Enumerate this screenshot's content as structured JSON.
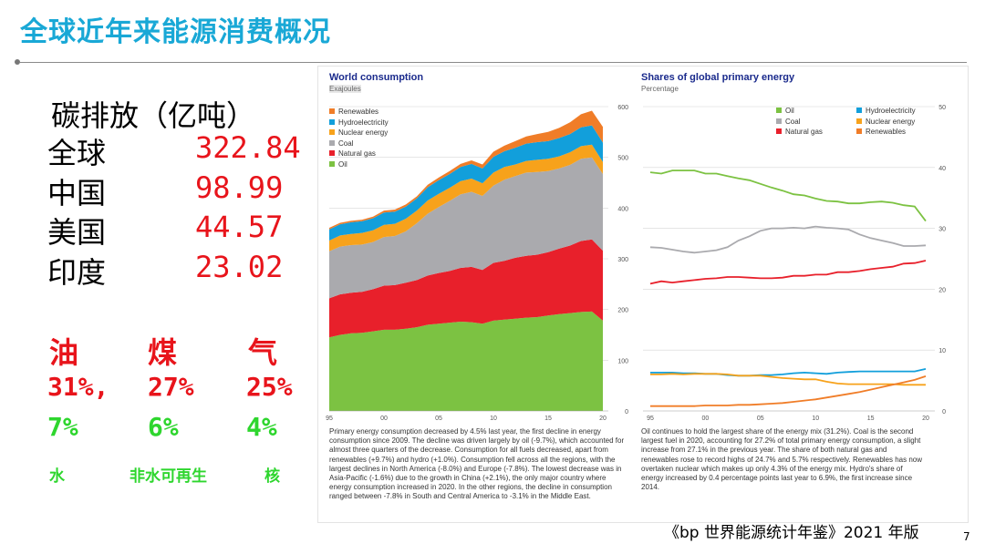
{
  "title": "全球近年来能源消费概况",
  "emissions": {
    "heading": "碳排放（亿吨）",
    "rows": [
      {
        "region": "全球",
        "value": "322.84"
      },
      {
        "region": "中国",
        "value": "98.99"
      },
      {
        "region": "美国",
        "value": "44.57"
      },
      {
        "region": "印度",
        "value": "23.02"
      }
    ]
  },
  "mix": {
    "labels": [
      "油",
      "煤",
      "气"
    ],
    "pcts": [
      "31%,",
      "27%",
      "25%"
    ],
    "pcts2": [
      "7%",
      "6%",
      "4%"
    ],
    "labels2": [
      "水",
      "非水可再生",
      "核"
    ]
  },
  "left_chart": {
    "title": "World consumption",
    "subtitle": "Exajoules",
    "note": "Primary energy consumption decreased by 4.5% last year, the first decline in energy consumption since 2009. The decline was driven largely by oil (-9.7%), which accounted for almost three quarters of the decrease. Consumption for all fuels decreased, apart from renewables (+9.7%) and hydro (+1.0%). Consumption fell across all the regions, with the largest declines in North America (-8.0%) and Europe (-7.8%). The lowest decrease was in Asia-Pacific (-1.6%) due to the growth in China (+2.1%), the only major country where energy consumption increased in 2020. In the other regions, the decline in consumption ranged between -7.8% in South and Central America to -3.1% in the Middle East."
  },
  "right_chart": {
    "title": "Shares of global primary energy",
    "subtitle": "Percentage",
    "note": "Oil continues to hold the largest share of the energy mix (31.2%). Coal is the second largest fuel in 2020, accounting for 27.2% of total primary energy consumption, a slight increase from 27.1% in the previous year. The share of both natural gas and renewables rose to record highs of 24.7% and 5.7% respectively. Renewables has now overtaken nuclear which makes up only 4.3% of the energy mix. Hydro's share of energy increased by 0.4 percentage points last year to 6.9%, the first increase since 2014."
  },
  "source": "《bp 世界能源统计年鉴》2021 年版",
  "page": "7",
  "colors": {
    "oil": "#7cc242",
    "natural_gas": "#e8202b",
    "coal": "#aaaaae",
    "nuclear": "#f7a21b",
    "hydro": "#129fdb",
    "renewables": "#f07d28"
  },
  "chart_data": [
    {
      "type": "area",
      "title": "World consumption",
      "ylabel": "Exajoules",
      "x": [
        1995,
        1996,
        1997,
        1998,
        1999,
        2000,
        2001,
        2002,
        2003,
        2004,
        2005,
        2006,
        2007,
        2008,
        2009,
        2010,
        2011,
        2012,
        2013,
        2014,
        2015,
        2016,
        2017,
        2018,
        2019,
        2020
      ],
      "xticks": [
        "95",
        "00",
        "05",
        "10",
        "15",
        "20"
      ],
      "yticks": [
        0,
        100,
        200,
        300,
        400,
        500,
        600
      ],
      "ylim": [
        0,
        600
      ],
      "stacked": true,
      "series": [
        {
          "name": "Oil",
          "color": "#7cc242",
          "values": [
            145,
            150,
            153,
            154,
            157,
            160,
            160,
            162,
            165,
            170,
            172,
            174,
            176,
            175,
            172,
            178,
            180,
            182,
            184,
            185,
            188,
            191,
            193,
            195,
            196,
            178
          ]
        },
        {
          "name": "Natural gas",
          "color": "#e8202b",
          "values": [
            77,
            80,
            80,
            81,
            83,
            87,
            88,
            91,
            93,
            97,
            100,
            102,
            106,
            109,
            106,
            114,
            116,
            120,
            122,
            123,
            125,
            129,
            133,
            140,
            142,
            138
          ]
        },
        {
          "name": "Coal",
          "color": "#aaaaae",
          "values": [
            93,
            94,
            94,
            93,
            93,
            96,
            97,
            101,
            112,
            122,
            130,
            138,
            145,
            148,
            146,
            152,
            160,
            161,
            164,
            163,
            160,
            158,
            159,
            162,
            162,
            151
          ]
        },
        {
          "name": "Nuclear energy",
          "color": "#f7a21b",
          "values": [
            21,
            22,
            22,
            23,
            23,
            24,
            24,
            25,
            25,
            26,
            26,
            26,
            26,
            26,
            25,
            26,
            25,
            23,
            23,
            24,
            24,
            24,
            25,
            25,
            25,
            24
          ]
        },
        {
          "name": "Hydroelectricity",
          "color": "#129fdb",
          "values": [
            22,
            22,
            23,
            23,
            24,
            24,
            24,
            24,
            24,
            26,
            27,
            27,
            28,
            29,
            29,
            31,
            31,
            33,
            34,
            35,
            35,
            36,
            36,
            37,
            38,
            38
          ]
        },
        {
          "name": "Renewables",
          "color": "#f07d28",
          "values": [
            3,
            3,
            3,
            3,
            3,
            4,
            4,
            4,
            4,
            5,
            5,
            6,
            6,
            7,
            8,
            10,
            11,
            13,
            14,
            16,
            18,
            20,
            23,
            26,
            29,
            31
          ]
        }
      ]
    },
    {
      "type": "line",
      "title": "Shares of global primary energy",
      "ylabel": "Percentage",
      "x": [
        1995,
        1996,
        1997,
        1998,
        1999,
        2000,
        2001,
        2002,
        2003,
        2004,
        2005,
        2006,
        2007,
        2008,
        2009,
        2010,
        2011,
        2012,
        2013,
        2014,
        2015,
        2016,
        2017,
        2018,
        2019,
        2020
      ],
      "xticks": [
        "95",
        "00",
        "05",
        "10",
        "15",
        "20"
      ],
      "yticks": [
        0,
        10,
        20,
        30,
        40,
        50
      ],
      "ylim": [
        0,
        50
      ],
      "series": [
        {
          "name": "Oil",
          "color": "#7cc242",
          "values": [
            39.2,
            39.0,
            39.5,
            39.5,
            39.5,
            39.0,
            39.0,
            38.6,
            38.2,
            37.9,
            37.3,
            36.7,
            36.2,
            35.6,
            35.4,
            34.9,
            34.5,
            34.4,
            34.1,
            34.1,
            34.3,
            34.4,
            34.2,
            33.8,
            33.6,
            31.2
          ]
        },
        {
          "name": "Coal",
          "color": "#aaaaae",
          "values": [
            26.9,
            26.8,
            26.5,
            26.2,
            26.0,
            26.2,
            26.4,
            26.9,
            28.0,
            28.7,
            29.6,
            30.0,
            30.0,
            30.1,
            30.0,
            30.3,
            30.1,
            30.0,
            29.8,
            29.0,
            28.4,
            28.0,
            27.6,
            27.1,
            27.1,
            27.2
          ]
        },
        {
          "name": "Natural gas",
          "color": "#e8202b",
          "values": [
            20.9,
            21.3,
            21.1,
            21.3,
            21.5,
            21.7,
            21.8,
            22.0,
            22.0,
            21.9,
            21.8,
            21.8,
            21.9,
            22.2,
            22.2,
            22.4,
            22.4,
            22.8,
            22.8,
            23.0,
            23.3,
            23.5,
            23.7,
            24.2,
            24.3,
            24.7
          ]
        },
        {
          "name": "Hydroelectricity",
          "color": "#129fdb",
          "values": [
            6.3,
            6.3,
            6.3,
            6.2,
            6.2,
            6.1,
            6.1,
            5.9,
            5.8,
            5.8,
            5.9,
            5.9,
            6.0,
            6.2,
            6.3,
            6.2,
            6.1,
            6.3,
            6.4,
            6.5,
            6.5,
            6.5,
            6.5,
            6.5,
            6.5,
            6.9
          ]
        },
        {
          "name": "Nuclear energy",
          "color": "#f7a21b",
          "values": [
            6.0,
            6.0,
            6.1,
            6.0,
            6.1,
            6.1,
            6.1,
            6.0,
            5.8,
            5.8,
            5.8,
            5.6,
            5.4,
            5.3,
            5.2,
            5.2,
            4.8,
            4.5,
            4.4,
            4.4,
            4.4,
            4.4,
            4.4,
            4.3,
            4.3,
            4.3
          ]
        },
        {
          "name": "Renewables",
          "color": "#f07d28",
          "values": [
            0.8,
            0.8,
            0.8,
            0.8,
            0.8,
            0.9,
            0.9,
            0.9,
            1.0,
            1.0,
            1.1,
            1.2,
            1.3,
            1.5,
            1.7,
            1.9,
            2.2,
            2.5,
            2.8,
            3.1,
            3.5,
            3.9,
            4.3,
            4.7,
            5.1,
            5.7
          ]
        }
      ]
    }
  ]
}
